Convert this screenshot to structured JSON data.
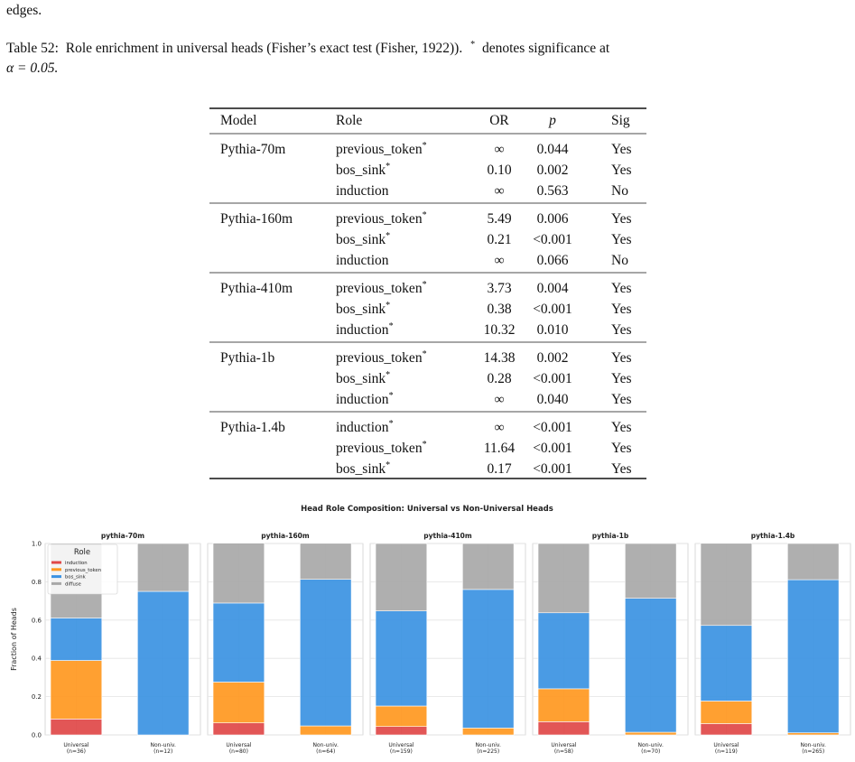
{
  "text_fragment": "edges.",
  "caption": {
    "label": "Table 52:",
    "text": "Role enrichment in universal heads (Fisher’s exact test (Fisher, 1922)).",
    "star": "*",
    "note": "denotes significance at",
    "alpha": "α = 0.05."
  },
  "table": {
    "header": [
      "Model",
      "Role",
      "OR",
      "p",
      "Sig"
    ],
    "groups": [
      {
        "model": "Pythia-70m",
        "rows": [
          {
            "role": "previous_token",
            "mark": "*",
            "or": "∞",
            "p": "0.044",
            "sig": "Yes"
          },
          {
            "role": "bos_sink",
            "mark": "*",
            "or": "0.10",
            "p": "0.002",
            "sig": "Yes"
          },
          {
            "role": "induction",
            "or": "∞",
            "p": "0.563",
            "sig": "No"
          }
        ]
      },
      {
        "model": "Pythia-160m",
        "rows": [
          {
            "role": "previous_token",
            "mark": "*",
            "or": "5.49",
            "p": "0.006",
            "sig": "Yes"
          },
          {
            "role": "bos_sink",
            "mark": "*",
            "or": "0.21",
            "p": "<0.001",
            "sig": "Yes"
          },
          {
            "role": "induction",
            "or": "∞",
            "p": "0.066",
            "sig": "No"
          }
        ]
      },
      {
        "model": "Pythia-410m",
        "rows": [
          {
            "role": "previous_token",
            "mark": "*",
            "or": "3.73",
            "p": "0.004",
            "sig": "Yes"
          },
          {
            "role": "bos_sink",
            "mark": "*",
            "or": "0.38",
            "p": "<0.001",
            "sig": "Yes"
          },
          {
            "role": "induction",
            "mark": "*",
            "or": "10.32",
            "p": "0.010",
            "sig": "Yes"
          }
        ]
      },
      {
        "model": "Pythia-1b",
        "rows": [
          {
            "role": "previous_token",
            "mark": "*",
            "or": "14.38",
            "p": "0.002",
            "sig": "Yes"
          },
          {
            "role": "bos_sink",
            "mark": "*",
            "or": "0.28",
            "p": "<0.001",
            "sig": "Yes"
          },
          {
            "role": "induction",
            "mark": "*",
            "or": "∞",
            "p": "0.040",
            "sig": "Yes"
          }
        ]
      },
      {
        "model": "Pythia-1.4b",
        "rows": [
          {
            "role": "induction",
            "mark": "*",
            "or": "∞",
            "p": "<0.001",
            "sig": "Yes"
          },
          {
            "role": "previous_token",
            "mark": "*",
            "or": "11.64",
            "p": "<0.001",
            "sig": "Yes"
          },
          {
            "role": "bos_sink",
            "mark": "*",
            "or": "0.17",
            "p": "<0.001",
            "sig": "Yes"
          }
        ]
      }
    ]
  },
  "figure": {
    "title": "Head Role Composition: Universal vs Non-Universal Heads",
    "ylabel": "Fraction of Heads"
  },
  "chart_data": [
    {
      "type": "bar",
      "stacked": true,
      "title": "pythia-70m",
      "categories": [
        "Universal",
        "Non-univ."
      ],
      "n_labels": [
        "(n=36)",
        "(n=12)"
      ],
      "legend": true,
      "legend_title": "Role",
      "series": [
        {
          "name": "induction",
          "color": "#e04848",
          "values": [
            0.083,
            0
          ]
        },
        {
          "name": "previous_token",
          "color": "#ff9820",
          "values": [
            0.306,
            0
          ]
        },
        {
          "name": "bos_sink",
          "color": "#3b92e2",
          "values": [
            0.222,
            0.75
          ]
        },
        {
          "name": "diffuse",
          "color": "#a8a8a8",
          "values": [
            0.389,
            0.25
          ]
        }
      ],
      "ylim": [
        0,
        1
      ],
      "yticks": [
        {
          "value": 0,
          "label": "0.0"
        },
        0.2,
        0.4,
        0.6,
        0.8,
        {
          "value": 1,
          "label": "1.0"
        }
      ],
      "grid": true
    },
    {
      "type": "bar",
      "stacked": true,
      "title": "pythia-160m",
      "categories": [
        "Universal",
        "Non-univ."
      ],
      "n_labels": [
        "(n=80)",
        "(n=64)"
      ],
      "series": [
        {
          "color": "#e04848",
          "values": [
            0.063,
            0
          ]
        },
        {
          "color": "#ff9820",
          "values": [
            0.213,
            0.047
          ]
        },
        {
          "color": "#3b92e2",
          "values": [
            0.413,
            0.766
          ]
        },
        {
          "color": "#a8a8a8",
          "values": [
            0.313,
            0.188
          ]
        }
      ],
      "ylim": [
        0,
        1
      ],
      "yticks": [
        0,
        0.2,
        0.4,
        0.6,
        0.8,
        1
      ],
      "grid": true
    },
    {
      "type": "bar",
      "stacked": true,
      "title": "pythia-410m",
      "categories": [
        "Universal",
        "Non-univ."
      ],
      "n_labels": [
        "(n=159)",
        "(n=225)"
      ],
      "series": [
        {
          "color": "#e04848",
          "values": [
            0.044,
            0
          ]
        },
        {
          "color": "#ff9820",
          "values": [
            0.107,
            0.036
          ]
        },
        {
          "color": "#3b92e2",
          "values": [
            0.497,
            0.724
          ]
        },
        {
          "color": "#a8a8a8",
          "values": [
            0.352,
            0.24
          ]
        }
      ],
      "ylim": [
        0,
        1
      ],
      "yticks": [
        0,
        0.2,
        0.4,
        0.6,
        0.8,
        1
      ],
      "grid": true
    },
    {
      "type": "bar",
      "stacked": true,
      "title": "pythia-1b",
      "categories": [
        "Universal",
        "Non-univ."
      ],
      "n_labels": [
        "(n=58)",
        "(n=70)"
      ],
      "series": [
        {
          "color": "#e04848",
          "values": [
            0.069,
            0
          ]
        },
        {
          "color": "#ff9820",
          "values": [
            0.172,
            0.014
          ]
        },
        {
          "color": "#3b92e2",
          "values": [
            0.397,
            0.7
          ]
        },
        {
          "color": "#a8a8a8",
          "values": [
            0.362,
            0.286
          ]
        }
      ],
      "ylim": [
        0,
        1
      ],
      "yticks": [
        0,
        0.2,
        0.4,
        0.6,
        0.8,
        1
      ],
      "grid": true
    },
    {
      "type": "bar",
      "stacked": true,
      "title": "pythia-1.4b",
      "categories": [
        "Universal",
        "Non-univ."
      ],
      "n_labels": [
        "(n=119)",
        "(n=265)"
      ],
      "series": [
        {
          "color": "#e04848",
          "values": [
            0.059,
            0
          ]
        },
        {
          "color": "#ff9820",
          "values": [
            0.118,
            0.011
          ]
        },
        {
          "color": "#3b92e2",
          "values": [
            0.395,
            0.8
          ]
        },
        {
          "color": "#a8a8a8",
          "values": [
            0.429,
            0.189
          ]
        }
      ],
      "ylim": [
        0,
        1
      ],
      "yticks": [
        0,
        0.2,
        0.4,
        0.6,
        0.8,
        1
      ],
      "grid": true
    }
  ]
}
